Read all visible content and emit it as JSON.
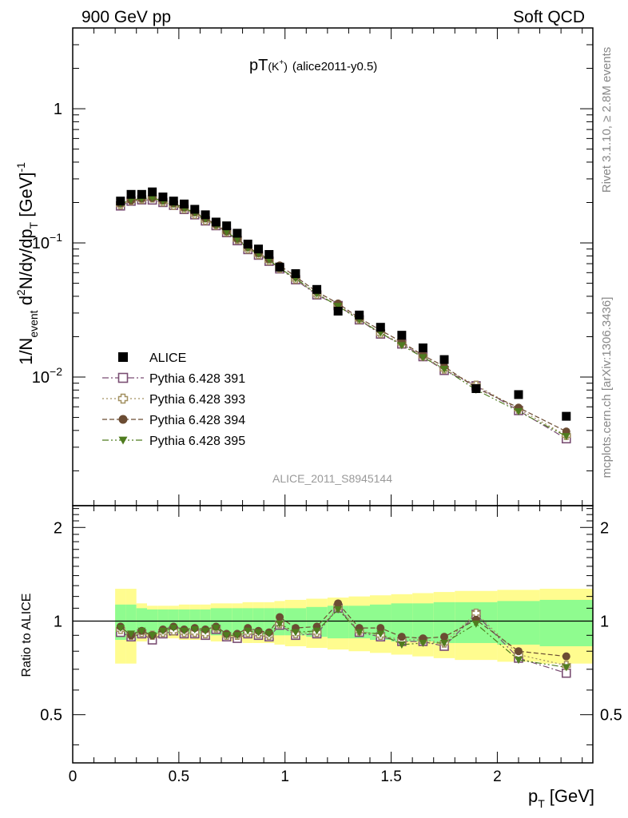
{
  "header": {
    "left": "900 GeV pp",
    "right": "Soft QCD"
  },
  "side_labels": {
    "top": "Rivet 3.1.10, ≥ 2.8M events",
    "bottom": "mcplots.cern.ch [arXiv:1306.3436]"
  },
  "chart_data": {
    "type": "scatter",
    "title_main": "pT",
    "title_sub": "(K",
    "title_sup": "+",
    "title_paren": ")",
    "title_tag": "(alice2011-y0.5)",
    "analysis_id": "ALICE_2011_S8945144",
    "xlabel_main": "p",
    "xlabel_sub": "T",
    "xlabel_unit": "[GeV]",
    "ylabel_parts": {
      "a": "1/N",
      "a_sub": "event",
      "b": " d",
      "b_sup": "2",
      "c": "N/dy/dp",
      "c_sub": "T",
      "d": " [GeV]",
      "d_sup": "-1"
    },
    "ratio_ylabel": "Ratio to ALICE",
    "log_scale_y": true,
    "grid": false,
    "legend_position": "lower-left",
    "xlim": [
      0,
      2.45
    ],
    "ylim_main": [
      0.0011,
      4.0
    ],
    "ylim_ratio": [
      0.35,
      2.35
    ],
    "x_ticks": [
      {
        "value": 0,
        "label": "0"
      },
      {
        "value": 0.5,
        "label": "0.5"
      },
      {
        "value": 1,
        "label": "1"
      },
      {
        "value": 1.5,
        "label": "1.5"
      },
      {
        "value": 2,
        "label": "2"
      }
    ],
    "y_ticks_main": [
      {
        "value": 1,
        "label": "1",
        "base": "1",
        "exp": ""
      },
      {
        "value": 0.1,
        "label": "10^-1",
        "base": "10",
        "exp": "−1"
      },
      {
        "value": 0.01,
        "label": "10^-2",
        "base": "10",
        "exp": "−2"
      }
    ],
    "y_ticks_ratio": [
      {
        "value": 0.5,
        "label": "0.5"
      },
      {
        "value": 1,
        "label": "1"
      },
      {
        "value": 2,
        "label": "2"
      }
    ],
    "bins": [
      [
        0.2,
        0.25
      ],
      [
        0.25,
        0.3
      ],
      [
        0.3,
        0.35
      ],
      [
        0.35,
        0.4
      ],
      [
        0.4,
        0.45
      ],
      [
        0.45,
        0.5
      ],
      [
        0.5,
        0.55
      ],
      [
        0.55,
        0.6
      ],
      [
        0.6,
        0.65
      ],
      [
        0.65,
        0.7
      ],
      [
        0.7,
        0.75
      ],
      [
        0.75,
        0.8
      ],
      [
        0.8,
        0.85
      ],
      [
        0.85,
        0.9
      ],
      [
        0.9,
        0.95
      ],
      [
        0.95,
        1.0
      ],
      [
        1.0,
        1.1
      ],
      [
        1.1,
        1.2
      ],
      [
        1.2,
        1.3
      ],
      [
        1.3,
        1.4
      ],
      [
        1.4,
        1.5
      ],
      [
        1.5,
        1.6
      ],
      [
        1.6,
        1.7
      ],
      [
        1.7,
        1.8
      ],
      [
        1.8,
        2.0
      ],
      [
        2.0,
        2.2
      ],
      [
        2.2,
        2.45
      ]
    ],
    "x": [
      0.225,
      0.275,
      0.325,
      0.375,
      0.425,
      0.475,
      0.525,
      0.575,
      0.625,
      0.675,
      0.725,
      0.775,
      0.825,
      0.875,
      0.925,
      0.975,
      1.05,
      1.15,
      1.25,
      1.35,
      1.45,
      1.55,
      1.65,
      1.75,
      1.9,
      2.1,
      2.325
    ],
    "data": {
      "name": "ALICE",
      "color": "#000000",
      "values": [
        0.205,
        0.23,
        0.23,
        0.24,
        0.22,
        0.205,
        0.195,
        0.178,
        0.162,
        0.143,
        0.134,
        0.118,
        0.098,
        0.09,
        0.082,
        0.066,
        0.059,
        0.045,
        0.031,
        0.029,
        0.0235,
        0.0205,
        0.0165,
        0.0135,
        0.0082,
        0.0074,
        0.0051
      ]
    },
    "band_inner": [
      0.13,
      0.13,
      0.1,
      0.09,
      0.09,
      0.09,
      0.09,
      0.09,
      0.09,
      0.1,
      0.1,
      0.1,
      0.1,
      0.1,
      0.1,
      0.1,
      0.1,
      0.11,
      0.12,
      0.12,
      0.13,
      0.14,
      0.14,
      0.15,
      0.15,
      0.16,
      0.17
    ],
    "band_outer": [
      0.27,
      0.27,
      0.14,
      0.12,
      0.12,
      0.12,
      0.13,
      0.13,
      0.13,
      0.14,
      0.14,
      0.14,
      0.15,
      0.15,
      0.15,
      0.16,
      0.17,
      0.18,
      0.19,
      0.2,
      0.21,
      0.22,
      0.23,
      0.24,
      0.25,
      0.26,
      0.27
    ],
    "band_colors": {
      "inner": "#8ffc8f",
      "outer": "#fffc8f"
    },
    "series": [
      {
        "name": "Pythia 6.428 391",
        "color": "#7a4e73",
        "marker": "open-square",
        "dash": "8,3,2,3",
        "ratio": [
          0.92,
          0.89,
          0.91,
          0.87,
          0.91,
          0.93,
          0.91,
          0.91,
          0.9,
          0.94,
          0.89,
          0.88,
          0.91,
          0.9,
          0.89,
          0.97,
          0.9,
          0.91,
          1.1,
          0.92,
          0.89,
          0.86,
          0.86,
          0.83,
          1.05,
          0.76,
          0.68
        ]
      },
      {
        "name": "Pythia 6.428 393",
        "color": "#a29060",
        "marker": "open-cross",
        "dash": "2,3",
        "ratio": [
          0.94,
          0.9,
          0.92,
          0.9,
          0.92,
          0.93,
          0.92,
          0.92,
          0.91,
          0.95,
          0.9,
          0.9,
          0.92,
          0.91,
          0.9,
          0.98,
          0.91,
          0.92,
          1.11,
          0.93,
          0.9,
          0.87,
          0.87,
          0.85,
          1.06,
          0.78,
          0.72
        ]
      },
      {
        "name": "Pythia 6.428 394",
        "color": "#6b4c33",
        "marker": "filled-circle",
        "dash": "6,3",
        "ratio": [
          0.96,
          0.9,
          0.93,
          0.9,
          0.94,
          0.96,
          0.94,
          0.95,
          0.94,
          0.96,
          0.91,
          0.91,
          0.95,
          0.93,
          0.92,
          1.03,
          0.95,
          0.96,
          1.14,
          0.95,
          0.95,
          0.89,
          0.88,
          0.89,
          1.01,
          0.8,
          0.77
        ]
      },
      {
        "name": "Pythia 6.428 395",
        "color": "#4f7c1f",
        "marker": "filled-triangle-down",
        "dash": "8,3,2,3,2,3",
        "ratio": [
          0.95,
          0.91,
          0.93,
          0.9,
          0.93,
          0.95,
          0.93,
          0.94,
          0.93,
          0.95,
          0.9,
          0.9,
          0.93,
          0.92,
          0.91,
          0.98,
          0.92,
          0.93,
          1.09,
          0.92,
          0.91,
          0.84,
          0.85,
          0.85,
          0.98,
          0.75,
          0.71
        ]
      }
    ]
  }
}
